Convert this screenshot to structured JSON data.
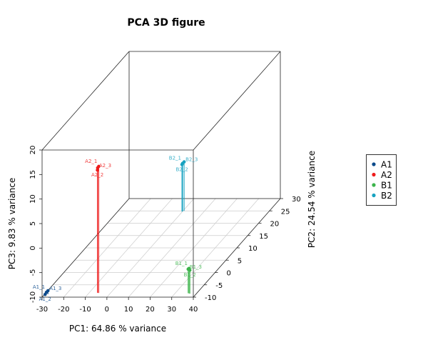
{
  "chart_data": {
    "type": "scatter",
    "title": "PCA 3D figure",
    "xlabel": "PC1: 64.86 % variance",
    "ylabel": "PC2: 24.54 % variance",
    "zlabel": "PC3: 9.83 % variance",
    "xlim": [
      -30,
      40
    ],
    "ylim": [
      -10,
      30
    ],
    "zlim": [
      -10,
      20
    ],
    "xticks": [
      -30,
      -20,
      -10,
      0,
      10,
      20,
      30,
      40
    ],
    "yticks": [
      -10,
      -5,
      0,
      5,
      10,
      15,
      20,
      25,
      30
    ],
    "zticks": [
      -10,
      -5,
      0,
      5,
      10,
      15,
      20
    ],
    "grid": true,
    "legend_position": "right",
    "series": [
      {
        "name": "A1",
        "color": "#0b4a8b",
        "points": [
          {
            "label": "A1_1",
            "x": -29,
            "y": -9,
            "z": -9.5
          },
          {
            "label": "A1_2",
            "x": -29.3,
            "y": -9.3,
            "z": -9.8
          },
          {
            "label": "A1_3",
            "x": -28.5,
            "y": -8.8,
            "z": -9.3
          }
        ]
      },
      {
        "name": "A2",
        "color": "#ee1c1c",
        "points": [
          {
            "label": "A2_1",
            "x": -5.5,
            "y": -8.3,
            "z": 15.8
          },
          {
            "label": "A2_2",
            "x": -6.2,
            "y": -8.2,
            "z": 15
          },
          {
            "label": "A2_3",
            "x": -6,
            "y": -8.3,
            "z": 15.5
          }
        ]
      },
      {
        "name": "B1",
        "color": "#3cb44b",
        "points": [
          {
            "label": "B1_1",
            "x": 36.5,
            "y": -8.5,
            "z": -4.9
          },
          {
            "label": "B1_2",
            "x": 37,
            "y": -8.6,
            "z": -5.2
          },
          {
            "label": "B1_3",
            "x": 36,
            "y": -8.4,
            "z": -5.1
          }
        ]
      },
      {
        "name": "B2",
        "color": "#17a2c0",
        "points": [
          {
            "label": "B2_1",
            "x": 0,
            "y": 24.8,
            "z": -0.2
          },
          {
            "label": "B2_2",
            "x": -0.2,
            "y": 24.7,
            "z": -0.4
          },
          {
            "label": "B2_3",
            "x": 0.5,
            "y": 25,
            "z": 0
          }
        ]
      }
    ]
  }
}
